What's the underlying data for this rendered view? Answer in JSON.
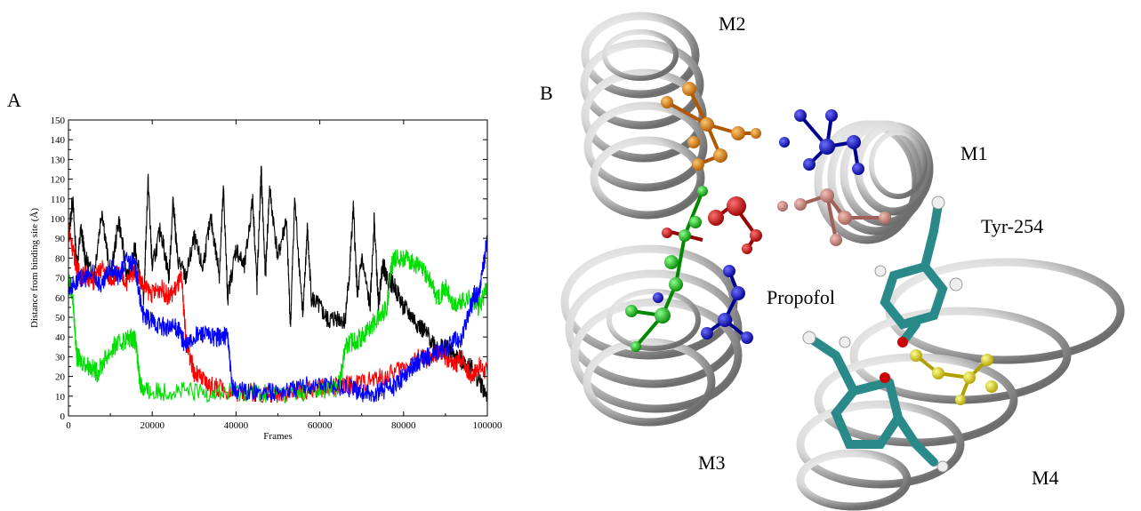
{
  "panels": {
    "a_label": "A",
    "b_label": "B"
  },
  "chart_data": {
    "type": "line",
    "title": "",
    "xlabel": "Frames",
    "ylabel": "Distance from binding site (Å)",
    "xlim": [
      0,
      100000
    ],
    "ylim": [
      0,
      150
    ],
    "xticks": [
      0,
      20000,
      40000,
      60000,
      80000,
      100000
    ],
    "yticks": [
      0,
      10,
      20,
      30,
      40,
      50,
      60,
      70,
      80,
      90,
      100,
      110,
      120,
      130,
      140,
      150
    ],
    "grid": false,
    "series": [
      {
        "color": "#000000",
        "x": [
          0,
          1000,
          2000,
          3000,
          4000,
          6000,
          8000,
          10000,
          12000,
          14000,
          16000,
          18000,
          19000,
          20000,
          22000,
          24000,
          25000,
          26000,
          28000,
          30000,
          32000,
          34000,
          36000,
          37000,
          38000,
          40000,
          42000,
          44000,
          45000,
          46000,
          47000,
          48000,
          50000,
          52000,
          53000,
          54000,
          56000,
          57000,
          58000,
          60000,
          62000,
          64000,
          66000,
          67000,
          68000,
          69000,
          70000,
          72000,
          73000,
          74000,
          75000,
          76000,
          78000,
          80000,
          82000,
          84000,
          86000,
          88000,
          90000,
          92000,
          94000,
          96000,
          98000,
          100000
        ],
        "y": [
          90,
          110,
          75,
          95,
          80,
          70,
          105,
          68,
          100,
          70,
          85,
          60,
          120,
          75,
          95,
          70,
          110,
          80,
          70,
          90,
          75,
          100,
          72,
          115,
          60,
          85,
          75,
          110,
          65,
          125,
          70,
          115,
          80,
          100,
          45,
          110,
          50,
          95,
          60,
          55,
          48,
          50,
          48,
          70,
          105,
          60,
          80,
          55,
          100,
          55,
          78,
          70,
          65,
          55,
          50,
          45,
          40,
          35,
          35,
          30,
          28,
          25,
          18,
          10
        ]
      },
      {
        "color": "#ff0000",
        "x": [
          0,
          1000,
          2000,
          3000,
          4000,
          6000,
          8000,
          10000,
          12000,
          14000,
          16000,
          18000,
          20000,
          22000,
          24000,
          26000,
          27000,
          28000,
          29000,
          30000,
          32000,
          34000,
          36000,
          40000,
          44000,
          48000,
          52000,
          56000,
          60000,
          64000,
          68000,
          72000,
          76000,
          80000,
          84000,
          86000,
          88000,
          90000,
          92000,
          94000,
          96000,
          98000,
          100000
        ],
        "y": [
          95,
          85,
          75,
          70,
          72,
          68,
          75,
          70,
          72,
          68,
          75,
          65,
          62,
          65,
          60,
          66,
          70,
          40,
          30,
          22,
          18,
          15,
          14,
          12,
          12,
          11,
          12,
          13,
          14,
          15,
          16,
          18,
          20,
          25,
          30,
          28,
          32,
          30,
          25,
          30,
          20,
          25,
          22
        ]
      },
      {
        "color": "#00dd00",
        "x": [
          0,
          1000,
          2000,
          3000,
          5000,
          7000,
          9000,
          11000,
          13000,
          15000,
          16000,
          17000,
          18000,
          20000,
          25000,
          30000,
          35000,
          40000,
          45000,
          50000,
          55000,
          60000,
          64000,
          65000,
          66000,
          68000,
          70000,
          72000,
          74000,
          76000,
          77000,
          78000,
          80000,
          82000,
          84000,
          86000,
          88000,
          90000,
          92000,
          94000,
          96000,
          98000,
          100000
        ],
        "y": [
          70,
          60,
          30,
          28,
          25,
          22,
          30,
          35,
          38,
          40,
          38,
          18,
          13,
          12,
          13,
          12,
          12,
          12,
          12,
          11,
          12,
          13,
          14,
          20,
          35,
          38,
          40,
          45,
          50,
          55,
          75,
          80,
          80,
          78,
          75,
          70,
          60,
          65,
          55,
          58,
          60,
          55,
          65
        ]
      },
      {
        "color": "#0000ff",
        "x": [
          0,
          2000,
          4000,
          6000,
          8000,
          10000,
          12000,
          14000,
          16000,
          17000,
          18000,
          20000,
          22000,
          24000,
          26000,
          27000,
          28000,
          30000,
          32000,
          34000,
          36000,
          38000,
          39000,
          40000,
          44000,
          48000,
          52000,
          56000,
          60000,
          64000,
          68000,
          70000,
          72000,
          74000,
          76000,
          78000,
          80000,
          82000,
          84000,
          86000,
          88000,
          90000,
          92000,
          94000,
          96000,
          97000,
          98000,
          99000,
          100000
        ],
        "y": [
          65,
          68,
          70,
          72,
          65,
          75,
          70,
          80,
          75,
          60,
          50,
          48,
          46,
          44,
          45,
          40,
          35,
          40,
          42,
          40,
          40,
          41,
          15,
          13,
          12,
          12,
          13,
          15,
          16,
          15,
          14,
          12,
          10,
          12,
          14,
          15,
          20,
          25,
          28,
          30,
          32,
          34,
          38,
          40,
          55,
          62,
          60,
          75,
          90
        ]
      }
    ]
  },
  "structure": {
    "helix_labels": {
      "m1": "M1",
      "m2": "M2",
      "m3": "M3",
      "m4": "M4"
    },
    "annotations": {
      "propofol": "Propofol",
      "tyr254": "Tyr-254"
    }
  }
}
